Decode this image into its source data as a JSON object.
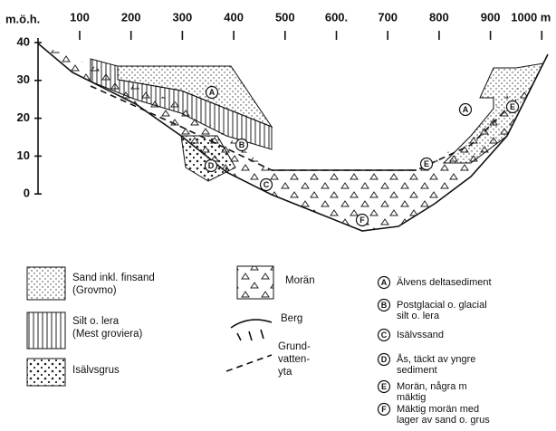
{
  "axes": {
    "y_label": "m.ö.h.",
    "y_ticks": [
      "40",
      "30",
      "20",
      "10",
      "0"
    ],
    "x_ticks": [
      "100",
      "200",
      "300",
      "400",
      "500",
      "600.",
      "700",
      "800",
      "900",
      "1000 m"
    ]
  },
  "legend": [
    {
      "lines": [
        "Sand inkl. finsand",
        "(Grovmo)"
      ]
    },
    {
      "lines": [
        "Silt o. lera",
        "(Mest groviera)"
      ]
    },
    {
      "lines": [
        "Isälvsgrus"
      ]
    },
    {
      "lines": [
        "Morän"
      ]
    },
    {
      "lines": [
        "Berg"
      ]
    },
    {
      "lines": [
        "Grund-",
        "vatten-",
        "yta"
      ]
    }
  ],
  "key": [
    {
      "letter": "A",
      "lines": [
        "Älvens deltasediment"
      ]
    },
    {
      "letter": "B",
      "lines": [
        "Postglacial o. glacial",
        "silt o. lera"
      ]
    },
    {
      "letter": "C",
      "lines": [
        "Isälvssand"
      ]
    },
    {
      "letter": "D",
      "lines": [
        "Ås, täckt av yngre",
        "sediment"
      ]
    },
    {
      "letter": "E",
      "lines": [
        "Morän, några m",
        "mäktig"
      ]
    },
    {
      "letter": "F",
      "lines": [
        "Mäktig morän med",
        "lager av sand o. grus"
      ]
    }
  ]
}
